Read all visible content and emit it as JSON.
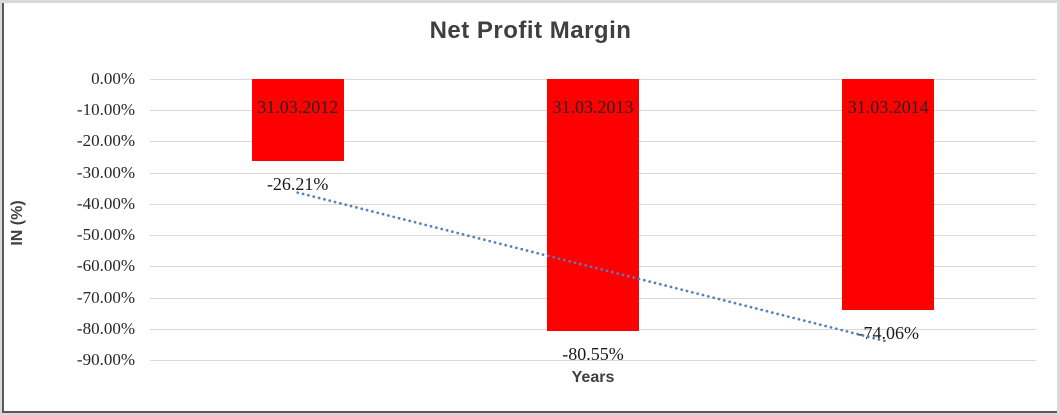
{
  "chart_data": {
    "type": "bar",
    "title": "Net Profit Margin",
    "xlabel": "Years",
    "ylabel": "IN (%)",
    "categories": [
      "31.03.2012",
      "31.03.2013",
      "31.03.2014"
    ],
    "values": [
      -26.21,
      -80.55,
      -74.06
    ],
    "data_labels": [
      "-26.21%",
      "-80.55%",
      "-74.06%"
    ],
    "data_label_position": "outside-end",
    "category_label_position": "inside-base",
    "ylim": [
      -90,
      0
    ],
    "ytick_step": 10,
    "ytick_labels": [
      "0.00%",
      "-10.00%",
      "-20.00%",
      "-30.00%",
      "-40.00%",
      "-50.00%",
      "-60.00%",
      "-70.00%",
      "-80.00%",
      "-90.00%"
    ],
    "grid": true,
    "legend": "none",
    "colors": {
      "bar": "#ff0000",
      "trendline": "#4f81bd",
      "gridline": "#d9d9d9",
      "title_text": "#3f3f3f",
      "tick_text": "#262626"
    },
    "trendline": {
      "type": "linear",
      "style": "dotted",
      "start_value": -36.4,
      "end_value": -84.2
    }
  }
}
